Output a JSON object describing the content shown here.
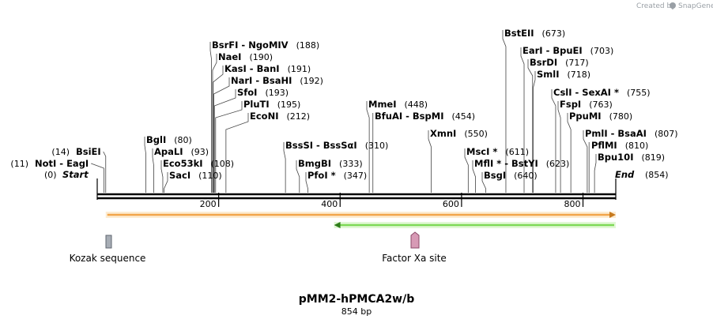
{
  "credit": {
    "prefix": "Created by",
    "brand": "SnapGene"
  },
  "plasmid": {
    "name": "pMM2-hPMCA2w/b",
    "size_label": "854 bp",
    "length": 854
  },
  "start_label": "Start",
  "start_pos": "(0)",
  "end_label": "End",
  "end_pos": "(854)",
  "ruler": {
    "ticks": [
      200,
      400,
      600,
      800
    ],
    "labels": [
      "200",
      "400",
      "600",
      "800"
    ]
  },
  "sites": [
    {
      "name": "NotI - EagI",
      "pos": 11,
      "pos_label": "(11)",
      "side": "left"
    },
    {
      "name": "BsiEI",
      "pos": 14,
      "pos_label": "(14)",
      "side": "left"
    },
    {
      "name": "BglI",
      "pos": 80,
      "pos_label": "(80)",
      "side": "right"
    },
    {
      "name": "ApaLI",
      "pos": 93,
      "pos_label": "(93)",
      "side": "right"
    },
    {
      "name": "Eco53kI",
      "pos": 108,
      "pos_label": "(108)",
      "side": "right"
    },
    {
      "name": "SacI",
      "pos": 110,
      "pos_label": "(110)",
      "side": "right"
    },
    {
      "name": "BsrFI - NgoMIV",
      "pos": 188,
      "pos_label": "(188)",
      "side": "right"
    },
    {
      "name": "NaeI",
      "pos": 190,
      "pos_label": "(190)",
      "side": "right"
    },
    {
      "name": "KasI - BanI",
      "pos": 191,
      "pos_label": "(191)",
      "side": "right"
    },
    {
      "name": "NarI - BsaHI",
      "pos": 192,
      "pos_label": "(192)",
      "side": "right"
    },
    {
      "name": "SfoI",
      "pos": 193,
      "pos_label": "(193)",
      "side": "right"
    },
    {
      "name": "PluTI",
      "pos": 195,
      "pos_label": "(195)",
      "side": "right"
    },
    {
      "name": "EcoNI",
      "pos": 212,
      "pos_label": "(212)",
      "side": "right"
    },
    {
      "name": "BssSI - BssSαI",
      "pos": 310,
      "pos_label": "(310)",
      "side": "right"
    },
    {
      "name": "BmgBI",
      "pos": 333,
      "pos_label": "(333)",
      "side": "right"
    },
    {
      "name": "PfoI *",
      "pos": 347,
      "pos_label": "(347)",
      "side": "right"
    },
    {
      "name": "MmeI",
      "pos": 448,
      "pos_label": "(448)",
      "side": "right"
    },
    {
      "name": "BfuAI - BspMI",
      "pos": 454,
      "pos_label": "(454)",
      "side": "right"
    },
    {
      "name": "XmnI",
      "pos": 550,
      "pos_label": "(550)",
      "side": "right"
    },
    {
      "name": "MscI *",
      "pos": 611,
      "pos_label": "(611)",
      "side": "right"
    },
    {
      "name": "MflI * - BstYI",
      "pos": 623,
      "pos_label": "(623)",
      "side": "right"
    },
    {
      "name": "BsgI",
      "pos": 640,
      "pos_label": "(640)",
      "side": "right"
    },
    {
      "name": "BstEII",
      "pos": 673,
      "pos_label": "(673)",
      "side": "right"
    },
    {
      "name": "EarI - BpuEI",
      "pos": 703,
      "pos_label": "(703)",
      "side": "right"
    },
    {
      "name": "BsrDI",
      "pos": 717,
      "pos_label": "(717)",
      "side": "right"
    },
    {
      "name": "SmlI",
      "pos": 718,
      "pos_label": "(718)",
      "side": "right"
    },
    {
      "name": "CslI - SexAI *",
      "pos": 755,
      "pos_label": "(755)",
      "side": "right"
    },
    {
      "name": "FspI",
      "pos": 763,
      "pos_label": "(763)",
      "side": "right"
    },
    {
      "name": "PpuMI",
      "pos": 780,
      "pos_label": "(780)",
      "side": "right"
    },
    {
      "name": "PmlI - BsaAI",
      "pos": 807,
      "pos_label": "(807)",
      "side": "right"
    },
    {
      "name": "PflMI",
      "pos": 810,
      "pos_label": "(810)",
      "side": "right"
    },
    {
      "name": "Bpu10I",
      "pos": 819,
      "pos_label": "(819)",
      "side": "right"
    }
  ],
  "features": [
    {
      "name": "orange-orf",
      "type": "arrow-forward",
      "start": 14,
      "end": 854,
      "color": "#f2a54a",
      "stroke": "#c77a1e"
    },
    {
      "name": "green-orf",
      "type": "arrow-reverse",
      "start": 390,
      "end": 854,
      "color": "#7ed957",
      "stroke": "#2f7d1a"
    },
    {
      "name": "Kozak sequence",
      "label": "Kozak sequence",
      "type": "box",
      "start": 11,
      "end": 21,
      "color": "#a7adb5",
      "stroke": "#5f6670"
    },
    {
      "name": "Factor Xa site",
      "label": "Factor Xa site",
      "type": "pentagon",
      "start": 524,
      "end": 536,
      "color": "#d79ab5",
      "stroke": "#8b4a68"
    }
  ]
}
